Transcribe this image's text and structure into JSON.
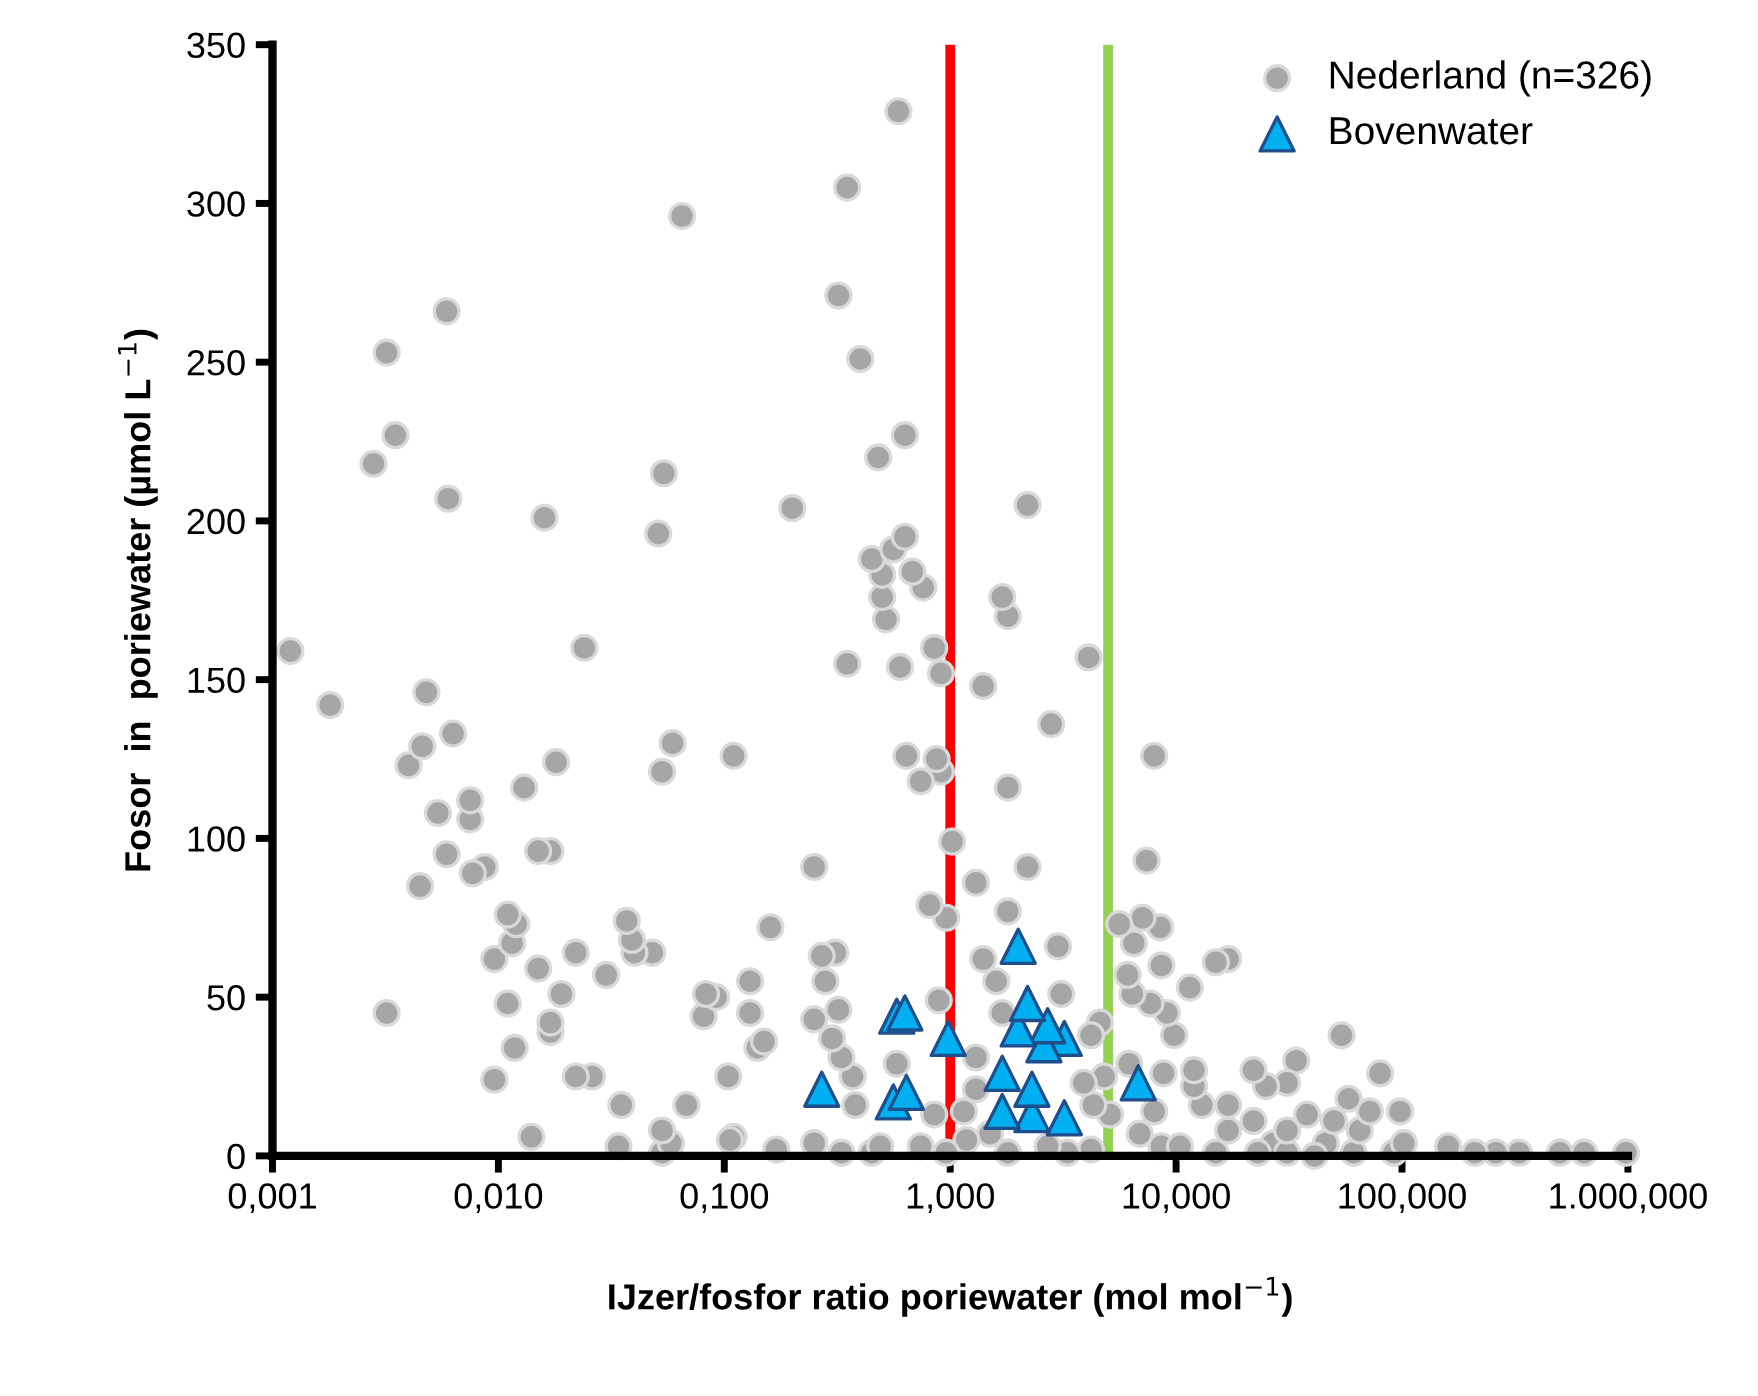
{
  "chart_data": {
    "type": "scatter",
    "xlabel": "IJzer/fosfor ratio poriewater (mol mol$^{−1}$)",
    "ylabel": "Fosor  in  poriewater (µmol L$^{−1}$)",
    "log": "x",
    "legend": "top right",
    "xlim": [
      0.001,
      1000
    ],
    "ylim": [
      0,
      350
    ],
    "xticks": [
      {
        "value": 0.001,
        "label": "0,001"
      },
      {
        "value": 0.01,
        "label": "0,010"
      },
      {
        "value": 0.1,
        "label": "0,100"
      },
      {
        "value": 1,
        "label": "1,000"
      },
      {
        "value": 10,
        "label": "10,000"
      },
      {
        "value": 100,
        "label": "100,000"
      },
      {
        "value": 1000,
        "label": "1.000,000"
      }
    ],
    "yticks": [
      0,
      50,
      100,
      150,
      200,
      250,
      300,
      350
    ],
    "ref_lines": [
      {
        "axis": "x",
        "value": 1,
        "color": "#ff0000"
      },
      {
        "axis": "x",
        "value": 5,
        "color": "#92d050"
      }
    ],
    "series": [
      {
        "name": "Nederland (n=326)",
        "marker": "circle",
        "color": "#a6a6a6",
        "x": [
          0.0012,
          0.0018,
          0.0048,
          0.024,
          0.0063,
          0.0046,
          0.004,
          0.018,
          0.013,
          0.0075,
          0.0054,
          0.0075,
          0.059,
          0.053,
          0.11,
          0.0059,
          0.015,
          0.017,
          0.0045,
          0.0077,
          0.0087,
          0.011,
          0.012,
          0.0115,
          0.0096,
          0.015,
          0.022,
          0.03,
          0.037,
          0.039,
          0.04,
          0.048,
          0.019,
          0.0032,
          0.011,
          0.017,
          0.017,
          0.0118,
          0.083,
          0.092,
          0.081,
          0.0096,
          0.022,
          0.026,
          0.035,
          0.068,
          0.014,
          0.034,
          0.053,
          0.058,
          0.053,
          0.104,
          0.106,
          0.065,
          0.0059,
          0.0032,
          0.0035,
          0.0028,
          0.006,
          0.016,
          0.054,
          0.051,
          0.59,
          0.35,
          0.32,
          0.4,
          0.63,
          0.48,
          0.2,
          2.2,
          0.63,
          0.56,
          0.45,
          0.5,
          0.68,
          0.76,
          0.5,
          0.52,
          1.7,
          1.8,
          0.35,
          0.6,
          0.85,
          0.91,
          1.4,
          4.1,
          2.8,
          0.64,
          0.87,
          0.74,
          0.91,
          1.8,
          1.02,
          0.25,
          1.3,
          2.2,
          7.4,
          0.16,
          0.81,
          0.96,
          1.8,
          0.27,
          0.31,
          0.28,
          0.13,
          1.4,
          3.0,
          1.6,
          3.1,
          0.13,
          0.25,
          0.32,
          0.3,
          0.33,
          0.15,
          0.14,
          0.89,
          1.7,
          1.3,
          4.2,
          4.6,
          0.58,
          0.37,
          0.38,
          0.85,
          1.3,
          3.9,
          4.8,
          4.3,
          5.1,
          0.11,
          0.25,
          0.33,
          0.49,
          0.74,
          0.96,
          1.15,
          1.18,
          1.5,
          1.8,
          2.7,
          3.3,
          4.2,
          0.17,
          0.45,
          8.0,
          5.6,
          7.1,
          8.5,
          6.5,
          8.6,
          15,
          17,
          6.1,
          6.4,
          7.7,
          9.1,
          11.5,
          9.8,
          54,
          6.2,
          8.8,
          12,
          12,
          22,
          25,
          31,
          34,
          80,
          8.0,
          13,
          17,
          22,
          38,
          58,
          72,
          98,
          50,
          17,
          31,
          65,
          102,
          6.9,
          10.4,
          15,
          23,
          31,
          41,
          61,
          92,
          160,
          210,
          260,
          330,
          500,
          640,
          980,
          46,
          27,
          8.6
        ],
        "values": [
          159,
          142,
          146,
          160,
          133,
          129,
          123,
          124,
          116,
          112,
          108,
          106,
          130,
          121,
          126,
          95,
          96,
          96,
          85,
          89,
          91,
          76,
          73,
          67,
          62,
          59,
          64,
          57,
          74,
          68,
          64,
          64,
          51,
          45,
          48,
          42,
          39,
          34,
          51,
          50,
          44,
          24,
          25,
          25,
          16,
          16,
          6,
          3,
          8,
          4,
          1,
          25,
          5,
          296,
          266,
          253,
          227,
          218,
          207,
          201,
          215,
          196,
          329,
          305,
          271,
          251,
          227,
          220,
          204,
          205,
          195,
          191,
          188,
          183,
          184,
          179,
          176,
          169,
          176,
          170,
          155,
          154,
          160,
          152,
          148,
          157,
          136,
          126,
          125,
          118,
          121,
          116,
          99,
          91,
          86,
          91,
          93,
          72,
          79,
          75,
          77,
          63,
          64,
          55,
          55,
          62,
          66,
          55,
          51,
          45,
          43,
          46,
          37,
          31,
          36,
          34,
          49,
          45,
          31,
          38,
          42,
          29,
          25,
          16,
          13,
          21,
          23,
          25,
          16,
          13,
          6,
          4,
          1,
          3,
          3,
          1,
          14,
          5,
          7,
          1,
          3,
          1,
          2,
          2,
          1,
          126,
          73,
          75,
          72,
          67,
          60,
          61,
          62,
          57,
          51,
          48,
          45,
          53,
          38,
          38,
          29,
          26,
          27,
          22,
          27,
          22,
          23,
          30,
          26,
          14,
          16,
          16,
          11,
          13,
          18,
          14,
          14,
          11,
          8,
          8,
          8,
          4,
          7,
          3,
          1,
          1,
          1,
          0,
          1,
          1,
          3,
          1,
          1,
          1,
          1,
          1,
          1,
          4,
          4,
          3
        ]
      },
      {
        "name": "Bovenwater",
        "marker": "triangle",
        "color": "#00b0f0",
        "x": [
          2.0,
          0.63,
          0.58,
          0.98,
          2.2,
          2.0,
          2.7,
          2.6,
          3.2,
          0.27,
          0.64,
          0.56,
          1.7,
          2.3,
          1.7,
          2.3,
          3.2,
          6.8
        ],
        "values": [
          66,
          45,
          44,
          37,
          48,
          40,
          41,
          35,
          37,
          21,
          20,
          17,
          26,
          21,
          14,
          13,
          12,
          23
        ]
      }
    ]
  }
}
